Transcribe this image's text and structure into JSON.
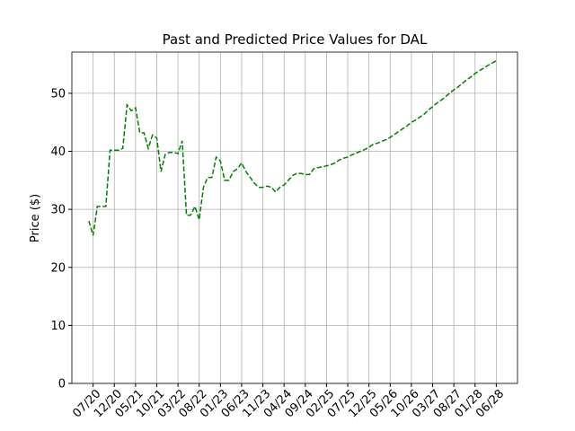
{
  "chart_data": {
    "type": "line",
    "title": "Past and Predicted Price Values for DAL",
    "ylabel": "Price ($)",
    "x": [
      "06/20",
      "07/20",
      "08/20",
      "09/20",
      "10/20",
      "11/20",
      "12/20",
      "01/21",
      "02/21",
      "03/21",
      "04/21",
      "05/21",
      "06/21",
      "07/21",
      "08/21",
      "09/21",
      "10/21",
      "11/21",
      "12/21",
      "01/22",
      "02/22",
      "03/22",
      "04/22",
      "05/22",
      "06/22",
      "07/22",
      "08/22",
      "09/22",
      "10/22",
      "11/22",
      "12/22",
      "01/23",
      "02/23",
      "03/23",
      "04/23",
      "05/23",
      "06/23",
      "07/23",
      "08/23",
      "09/23",
      "10/23",
      "11/23",
      "12/23",
      "01/24",
      "02/24",
      "03/24",
      "04/24",
      "05/24",
      "06/24",
      "07/24",
      "08/24",
      "09/24",
      "10/24",
      "11/24",
      "12/24",
      "01/25",
      "02/25",
      "03/25",
      "04/25",
      "05/25",
      "06/25",
      "07/25",
      "08/25",
      "09/25",
      "10/25",
      "11/25",
      "12/25",
      "01/26",
      "02/26",
      "03/26",
      "04/26",
      "05/26",
      "06/26",
      "07/26",
      "08/26",
      "09/26",
      "10/26",
      "11/26",
      "12/26",
      "01/27",
      "02/27",
      "03/27",
      "04/27",
      "05/27",
      "06/27",
      "07/27",
      "08/27",
      "09/27",
      "10/27",
      "11/27",
      "12/27",
      "01/28",
      "02/28",
      "03/28",
      "04/28",
      "05/28",
      "06/28"
    ],
    "series": [
      {
        "color": "#008000",
        "linestyle": "dashed",
        "values": [
          28.0,
          25.5,
          30.5,
          30.5,
          30.5,
          40.2,
          40.2,
          40.2,
          40.5,
          48.0,
          47.0,
          47.5,
          43.2,
          43.2,
          40.5,
          42.8,
          42.3,
          36.5,
          39.5,
          39.8,
          39.8,
          39.6,
          41.8,
          29.0,
          29.0,
          30.5,
          28.2,
          33.8,
          35.5,
          35.5,
          39.0,
          38.3,
          35.0,
          35.0,
          36.5,
          37.0,
          38.0,
          36.5,
          35.5,
          34.5,
          33.8,
          33.8,
          34.0,
          33.8,
          33.0,
          33.8,
          34.2,
          35.0,
          35.8,
          36.2,
          36.2,
          36.0,
          36.0,
          37.0,
          37.2,
          37.3,
          37.5,
          37.7,
          38.0,
          38.5,
          38.8,
          39.0,
          39.4,
          39.7,
          40.0,
          40.3,
          40.7,
          41.2,
          41.4,
          41.7,
          42.0,
          42.4,
          42.9,
          43.4,
          43.9,
          44.4,
          45.0,
          45.4,
          45.9,
          46.4,
          47.1,
          47.7,
          48.3,
          48.8,
          49.4,
          50.0,
          50.6,
          51.1,
          51.7,
          52.3,
          52.8,
          53.4,
          53.9,
          54.3,
          54.8,
          55.2,
          55.6
        ]
      }
    ],
    "xlim": [
      "02/20",
      "11/28"
    ],
    "xticks": [
      "07/20",
      "12/20",
      "05/21",
      "10/21",
      "03/22",
      "08/22",
      "01/23",
      "06/23",
      "11/23",
      "04/24",
      "09/24",
      "02/25",
      "07/25",
      "12/25",
      "05/26",
      "10/26",
      "03/27",
      "08/27",
      "01/28",
      "06/28"
    ],
    "ylim": [
      0,
      57.1
    ],
    "yticks": [
      0,
      10,
      20,
      30,
      40,
      50
    ],
    "grid": true
  }
}
